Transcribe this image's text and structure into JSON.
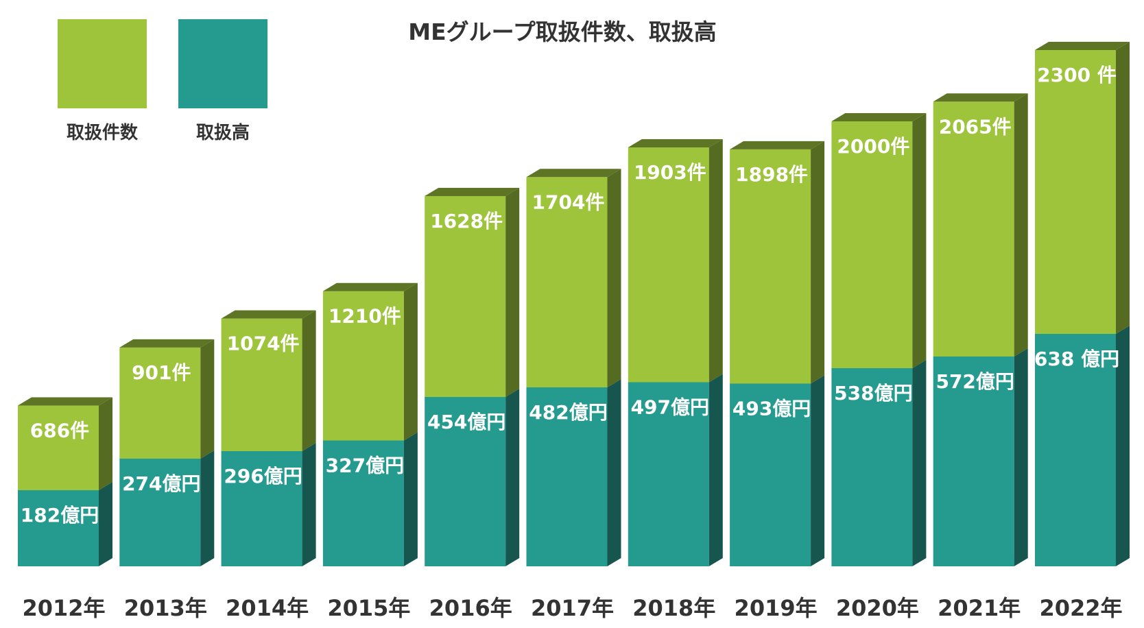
{
  "chart_data": {
    "type": "bar",
    "stacked": true,
    "title": "MEグループ取扱件数、取扱高",
    "categories": [
      "2012年",
      "2013年",
      "2014年",
      "2015年",
      "2016年",
      "2017年",
      "2018年",
      "2019年",
      "2020年",
      "2021年",
      "2022年"
    ],
    "series": [
      {
        "name": "取扱高",
        "unit_label": "億円",
        "color": "#259a8f",
        "side_color": "#17554f",
        "values": [
          182,
          274,
          296,
          327,
          454,
          482,
          497,
          493,
          538,
          572,
          638
        ],
        "labels": [
          "182億円",
          "274億円",
          "296億円",
          "327億円",
          "454億円",
          "482億円",
          "497億円",
          "493億円",
          "538億円",
          "572億円",
          "638 億円"
        ]
      },
      {
        "name": "取扱件数",
        "unit_label": "件",
        "color": "#9dc43a",
        "side_color": "#556b22",
        "values": [
          686,
          901,
          1074,
          1210,
          1628,
          1704,
          1903,
          1898,
          2000,
          2065,
          2300
        ],
        "labels": [
          "686件",
          "901件",
          "1074件",
          "1210件",
          "1628件",
          "1704件",
          "1903件",
          "1898件",
          "2000件",
          "2065件",
          "2300 件"
        ]
      }
    ],
    "legend_position": "top-left",
    "grid": false,
    "xlabel": "",
    "ylabel": ""
  }
}
